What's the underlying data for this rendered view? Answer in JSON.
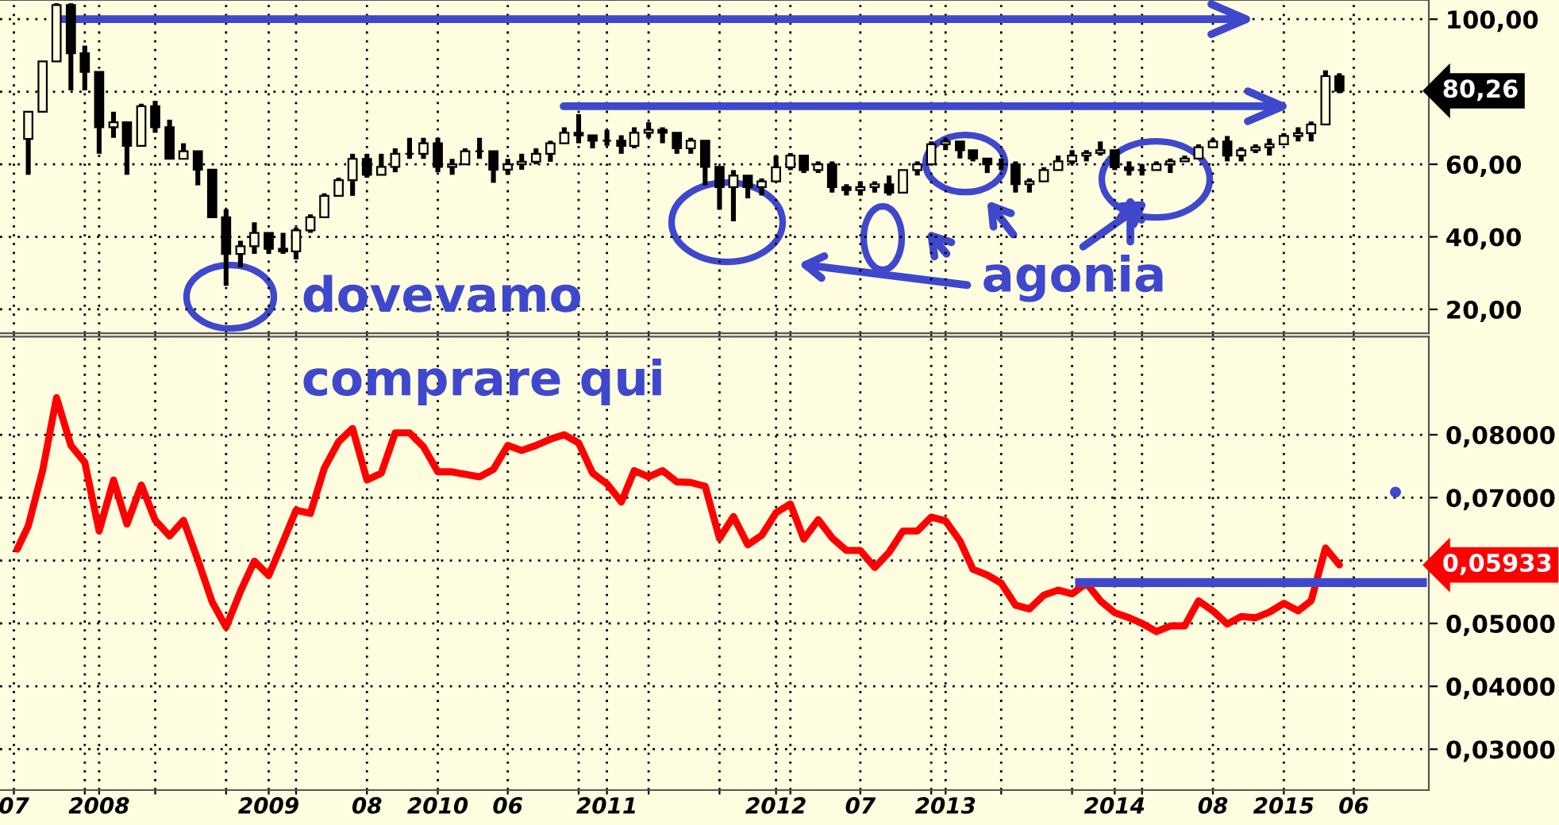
{
  "chart_data": [
    {
      "type": "candlestick",
      "color": "#000000",
      "grid": true,
      "tick_labels": "y",
      "x": [
        "2007-08",
        "2007-09",
        "2007-10",
        "2007-11",
        "2007-12",
        "2008-01",
        "2008-02",
        "2008-03",
        "2008-04",
        "2008-05",
        "2008-06",
        "2008-07",
        "2008-08",
        "2008-09",
        "2008-10",
        "2008-11",
        "2008-12",
        "2009-01",
        "2009-02",
        "2009-03",
        "2009-04",
        "2009-05",
        "2009-06",
        "2009-07",
        "2009-08",
        "2009-09",
        "2009-10",
        "2009-11",
        "2009-12",
        "2010-01",
        "2010-02",
        "2010-03",
        "2010-04",
        "2010-05",
        "2010-06",
        "2010-07",
        "2010-08",
        "2010-09",
        "2010-10",
        "2010-11",
        "2010-12",
        "2011-01",
        "2011-02",
        "2011-03",
        "2011-04",
        "2011-05",
        "2011-06",
        "2011-07",
        "2011-08",
        "2011-09",
        "2011-10",
        "2011-11",
        "2011-12",
        "2012-01",
        "2012-02",
        "2012-03",
        "2012-04",
        "2012-05",
        "2012-06",
        "2012-07",
        "2012-08",
        "2012-09",
        "2012-10",
        "2012-11",
        "2012-12",
        "2013-01",
        "2013-02",
        "2013-03",
        "2013-04",
        "2013-05",
        "2013-06",
        "2013-07",
        "2013-08",
        "2013-09",
        "2013-10",
        "2013-11",
        "2013-12",
        "2014-01",
        "2014-02",
        "2014-03",
        "2014-04",
        "2014-05",
        "2014-06",
        "2014-07",
        "2014-08",
        "2014-09",
        "2014-10",
        "2014-11",
        "2014-12",
        "2015-01",
        "2015-02",
        "2015-03",
        "2015-04",
        "2015-05"
      ],
      "ohlc": [
        [
          67.0,
          74.5,
          57.1,
          74.5
        ],
        [
          74.5,
          88.4,
          74.5,
          88.4
        ],
        [
          88.4,
          104.4,
          88.4,
          103.9
        ],
        [
          103.9,
          104.4,
          80.4,
          90.6
        ],
        [
          90.6,
          92.7,
          80.4,
          85.5
        ],
        [
          85.5,
          85.5,
          62.9,
          70.2
        ],
        [
          70.2,
          74.5,
          67.3,
          71.6
        ],
        [
          71.6,
          71.6,
          57.1,
          65.1
        ],
        [
          65.1,
          76.7,
          65.1,
          76.0
        ],
        [
          76.0,
          77.5,
          68.7,
          70.2
        ],
        [
          70.2,
          72.3,
          61.5,
          61.5
        ],
        [
          61.5,
          65.8,
          61.5,
          63.6
        ],
        [
          63.6,
          63.6,
          54.2,
          58.5
        ],
        [
          58.5,
          58.5,
          45.4,
          45.4
        ],
        [
          45.4,
          47.6,
          26.5,
          35.3
        ],
        [
          35.3,
          38.9,
          31.6,
          37.4
        ],
        [
          37.4,
          44.0,
          35.3,
          41.1
        ],
        [
          41.1,
          41.1,
          35.3,
          36.7
        ],
        [
          36.7,
          41.1,
          35.3,
          36.0
        ],
        [
          36.0,
          42.5,
          33.8,
          41.8
        ],
        [
          41.8,
          46.2,
          41.1,
          45.4
        ],
        [
          45.4,
          52.0,
          45.4,
          51.3
        ],
        [
          51.3,
          56.3,
          51.3,
          55.6
        ],
        [
          55.6,
          62.9,
          51.3,
          61.5
        ],
        [
          61.5,
          62.9,
          56.3,
          57.1
        ],
        [
          57.1,
          62.9,
          57.1,
          59.3
        ],
        [
          59.3,
          64.4,
          57.8,
          62.9
        ],
        [
          62.9,
          67.3,
          61.5,
          62.9
        ],
        [
          62.9,
          67.3,
          61.5,
          65.8
        ],
        [
          65.8,
          67.3,
          57.8,
          59.3
        ],
        [
          59.3,
          61.5,
          57.1,
          60.0
        ],
        [
          60.0,
          64.4,
          60.0,
          63.6
        ],
        [
          63.6,
          67.3,
          61.5,
          63.6
        ],
        [
          63.6,
          63.6,
          54.9,
          58.5
        ],
        [
          58.5,
          61.5,
          57.1,
          60.0
        ],
        [
          60.0,
          62.9,
          58.5,
          60.7
        ],
        [
          60.7,
          64.4,
          60.0,
          62.9
        ],
        [
          62.9,
          66.5,
          60.7,
          65.8
        ],
        [
          65.8,
          70.2,
          65.8,
          68.7
        ],
        [
          68.7,
          73.8,
          65.8,
          68.0
        ],
        [
          68.0,
          68.0,
          64.4,
          66.5
        ],
        [
          66.5,
          69.5,
          65.1,
          66.5
        ],
        [
          66.5,
          68.0,
          62.9,
          65.1
        ],
        [
          65.1,
          70.2,
          64.4,
          68.7
        ],
        [
          68.7,
          71.6,
          67.3,
          69.5
        ],
        [
          69.5,
          70.2,
          65.8,
          68.7
        ],
        [
          68.7,
          68.7,
          62.9,
          64.4
        ],
        [
          64.4,
          67.3,
          62.9,
          66.5
        ],
        [
          66.5,
          66.5,
          54.2,
          59.3
        ],
        [
          59.3,
          59.3,
          47.5,
          53.7
        ],
        [
          53.7,
          58.4,
          44.3,
          56.9
        ],
        [
          56.9,
          56.9,
          50.6,
          53.7
        ],
        [
          53.7,
          56.1,
          51.4,
          55.3
        ],
        [
          55.3,
          62.4,
          55.3,
          59.2
        ],
        [
          59.2,
          63.1,
          58.4,
          62.4
        ],
        [
          62.4,
          62.4,
          57.6,
          58.4
        ],
        [
          58.4,
          60.8,
          57.6,
          60.0
        ],
        [
          60.0,
          60.8,
          52.2,
          53.7
        ],
        [
          53.7,
          54.5,
          51.4,
          52.9
        ],
        [
          52.9,
          55.3,
          51.4,
          53.7
        ],
        [
          53.7,
          55.3,
          52.2,
          54.5
        ],
        [
          54.5,
          56.9,
          51.4,
          52.2
        ],
        [
          52.2,
          58.4,
          52.2,
          58.4
        ],
        [
          58.4,
          60.8,
          56.9,
          60.0
        ],
        [
          60.0,
          66.3,
          60.0,
          65.5
        ],
        [
          65.5,
          67.1,
          63.9,
          66.3
        ],
        [
          66.3,
          66.3,
          61.6,
          63.9
        ],
        [
          63.9,
          63.9,
          60.8,
          61.6
        ],
        [
          61.6,
          61.6,
          57.6,
          60.0
        ],
        [
          60.0,
          61.6,
          58.4,
          60.0
        ],
        [
          60.0,
          60.8,
          52.2,
          54.5
        ],
        [
          54.5,
          56.1,
          52.2,
          55.3
        ],
        [
          55.3,
          59.2,
          55.3,
          58.4
        ],
        [
          58.4,
          62.4,
          58.4,
          60.8
        ],
        [
          60.8,
          63.9,
          60.0,
          62.4
        ],
        [
          62.4,
          63.9,
          60.8,
          63.1
        ],
        [
          63.1,
          66.3,
          62.4,
          63.9
        ],
        [
          63.9,
          63.9,
          58.4,
          59.2
        ],
        [
          59.2,
          60.8,
          56.9,
          58.4
        ],
        [
          58.4,
          60.0,
          56.9,
          58.4
        ],
        [
          58.4,
          60.8,
          58.4,
          60.0
        ],
        [
          60.0,
          61.6,
          57.6,
          60.8
        ],
        [
          60.8,
          62.4,
          60.8,
          61.6
        ],
        [
          61.6,
          65.5,
          61.6,
          64.7
        ],
        [
          64.7,
          67.1,
          64.7,
          66.3
        ],
        [
          66.3,
          67.8,
          60.8,
          62.4
        ],
        [
          62.4,
          64.7,
          60.8,
          63.9
        ],
        [
          63.9,
          65.5,
          63.1,
          64.7
        ],
        [
          64.7,
          67.1,
          62.4,
          65.5
        ],
        [
          65.5,
          68.6,
          65.5,
          67.8
        ],
        [
          67.8,
          70.2,
          66.3,
          68.6
        ],
        [
          68.6,
          71.8,
          66.3,
          71.0
        ],
        [
          71.0,
          85.9,
          71.0,
          84.3
        ],
        [
          84.3,
          85.1,
          79.6,
          80.26
        ]
      ],
      "xlim": [
        "2007-06-01",
        "2015-11-10"
      ],
      "xticks": [
        {
          "value": "2007-07",
          "label": null
        },
        {
          "value": "2007-12",
          "label": null
        },
        {
          "value": "2008-01",
          "label": null
        },
        {
          "value": "2008-05",
          "label": null
        },
        {
          "value": "2008-10",
          "label": null
        },
        {
          "value": "2009-01",
          "label": null
        },
        {
          "value": "2009-03",
          "label": null
        },
        {
          "value": "2009-08",
          "label": null
        },
        {
          "value": "2010-01",
          "label": null
        },
        {
          "value": "2010-06",
          "label": null
        },
        {
          "value": "2010-11",
          "label": null
        },
        {
          "value": "2011-01",
          "label": null
        },
        {
          "value": "2011-04",
          "label": null
        },
        {
          "value": "2011-09",
          "label": null
        },
        {
          "value": "2012-01",
          "label": null
        },
        {
          "value": "2012-02",
          "label": null
        },
        {
          "value": "2012-07",
          "label": null
        },
        {
          "value": "2012-12",
          "label": null
        },
        {
          "value": "2013-01",
          "label": null
        },
        {
          "value": "2013-05",
          "label": null
        },
        {
          "value": "2013-10",
          "label": null
        },
        {
          "value": "2014-01",
          "label": null
        },
        {
          "value": "2014-03",
          "label": null
        },
        {
          "value": "2014-08",
          "label": null
        },
        {
          "value": "2015-01",
          "label": null
        },
        {
          "value": "2015-06",
          "label": null
        }
      ],
      "ylim": [
        13.4,
        105.3
      ],
      "yticks": [
        {
          "value": 20,
          "label": "20,00"
        },
        {
          "value": 40,
          "label": "40,00"
        },
        {
          "value": 60,
          "label": "60,00"
        },
        {
          "value": 80,
          "label": null
        },
        {
          "value": 100,
          "label": "100,00"
        }
      ],
      "ref_lines": [
        {
          "axis": "y",
          "value": 100,
          "color": "#3f48cc"
        },
        {
          "axis": "y",
          "value": 76,
          "color": "#3f48cc"
        }
      ],
      "annotations": [
        "dovevamo",
        "agonia",
        "80,26"
      ]
    },
    {
      "type": "line",
      "grid": true,
      "x": [
        "2007-07-08",
        "2007-08",
        "2007-09",
        "2007-10",
        "2007-11",
        "2007-12",
        "2008-01",
        "2008-02",
        "2008-03",
        "2008-04",
        "2008-05",
        "2008-06",
        "2008-07",
        "2008-08",
        "2008-09",
        "2008-10",
        "2008-11",
        "2008-12",
        "2009-01",
        "2009-02",
        "2009-03",
        "2009-04",
        "2009-05",
        "2009-06",
        "2009-07",
        "2009-08",
        "2009-09",
        "2009-10",
        "2009-11",
        "2009-12",
        "2010-01",
        "2010-02",
        "2010-03",
        "2010-04",
        "2010-05",
        "2010-06",
        "2010-07",
        "2010-08",
        "2010-09",
        "2010-10",
        "2010-11",
        "2010-12",
        "2011-01",
        "2011-02",
        "2011-03",
        "2011-04",
        "2011-05",
        "2011-06",
        "2011-07",
        "2011-08",
        "2011-09",
        "2011-10",
        "2011-11",
        "2011-12",
        "2012-01",
        "2012-02",
        "2012-03",
        "2012-04",
        "2012-05",
        "2012-06",
        "2012-07",
        "2012-08",
        "2012-09",
        "2012-10",
        "2012-11",
        "2012-12",
        "2013-01",
        "2013-02",
        "2013-03",
        "2013-04",
        "2013-05",
        "2013-06",
        "2013-07",
        "2013-08",
        "2013-09",
        "2013-10",
        "2013-11",
        "2013-12",
        "2014-01",
        "2014-02",
        "2014-03",
        "2014-04",
        "2014-05",
        "2014-06",
        "2014-07",
        "2014-08",
        "2014-09",
        "2014-10",
        "2014-11",
        "2014-12",
        "2015-01",
        "2015-02",
        "2015-03",
        "2015-04",
        "2015-05"
      ],
      "series": [
        {
          "color": "#ff0000",
          "values": [
            0.0618,
            0.0655,
            0.0743,
            0.0859,
            0.0783,
            0.0756,
            0.0647,
            0.0728,
            0.0658,
            0.072,
            0.0664,
            0.0639,
            0.0664,
            0.0601,
            0.0534,
            0.0494,
            0.0551,
            0.0599,
            0.0576,
            0.063,
            0.068,
            0.0675,
            0.0747,
            0.0789,
            0.081,
            0.0728,
            0.0739,
            0.0803,
            0.0803,
            0.0781,
            0.0741,
            0.0741,
            0.0737,
            0.0733,
            0.0745,
            0.0783,
            0.0775,
            0.0783,
            0.0793,
            0.08,
            0.0787,
            0.0739,
            0.0722,
            0.0693,
            0.0743,
            0.0733,
            0.0743,
            0.0725,
            0.0724,
            0.0718,
            0.0635,
            0.067,
            0.0625,
            0.064,
            0.0676,
            0.069,
            0.0634,
            0.0665,
            0.0636,
            0.0616,
            0.0616,
            0.0589,
            0.0613,
            0.0647,
            0.0647,
            0.0669,
            0.0663,
            0.0631,
            0.0586,
            0.0577,
            0.0564,
            0.0529,
            0.0523,
            0.0545,
            0.0553,
            0.0547,
            0.0564,
            0.0536,
            0.0517,
            0.0509,
            0.05,
            0.0487,
            0.0496,
            0.0496,
            0.0536,
            0.052,
            0.0499,
            0.0511,
            0.0509,
            0.0518,
            0.0532,
            0.052,
            0.0536,
            0.062,
            0.0593
          ]
        }
      ],
      "xlim": [
        "2007-06-01",
        "2015-11-10"
      ],
      "xticks": [
        {
          "value": "2007-07",
          "label": "07"
        },
        {
          "value": "2007-12",
          "label": null
        },
        {
          "value": "2008-01",
          "label": "2008"
        },
        {
          "value": "2008-05",
          "label": null
        },
        {
          "value": "2008-10",
          "label": null
        },
        {
          "value": "2009-01",
          "label": "2009"
        },
        {
          "value": "2009-03",
          "label": null
        },
        {
          "value": "2009-08",
          "label": "08"
        },
        {
          "value": "2010-01",
          "label": "2010"
        },
        {
          "value": "2010-06",
          "label": "06"
        },
        {
          "value": "2010-11",
          "label": null
        },
        {
          "value": "2011-01",
          "label": "2011"
        },
        {
          "value": "2011-04",
          "label": null
        },
        {
          "value": "2011-09",
          "label": null
        },
        {
          "value": "2012-01",
          "label": "2012"
        },
        {
          "value": "2012-02",
          "label": null
        },
        {
          "value": "2012-07",
          "label": "07"
        },
        {
          "value": "2012-12",
          "label": null
        },
        {
          "value": "2013-01",
          "label": "2013"
        },
        {
          "value": "2013-05",
          "label": null
        },
        {
          "value": "2013-10",
          "label": null
        },
        {
          "value": "2014-01",
          "label": "2014"
        },
        {
          "value": "2014-03",
          "label": null
        },
        {
          "value": "2014-08",
          "label": "08"
        },
        {
          "value": "2015-01",
          "label": "2015"
        },
        {
          "value": "2015-06",
          "label": "06"
        }
      ],
      "ylim": [
        0.0235,
        0.0956
      ],
      "yticks": [
        {
          "value": 0.03,
          "label": "0,03000"
        },
        {
          "value": 0.04,
          "label": "0,04000"
        },
        {
          "value": 0.05,
          "label": "0,05000"
        },
        {
          "value": 0.06,
          "label": null
        },
        {
          "value": 0.07,
          "label": "0,07000"
        },
        {
          "value": 0.08,
          "label": "0,08000"
        }
      ],
      "ref_lines": [
        {
          "axis": "y",
          "value": 0.0565,
          "color": "#3f48cc"
        }
      ],
      "annotations": [
        "comprare qui",
        "0,05933"
      ]
    }
  ]
}
